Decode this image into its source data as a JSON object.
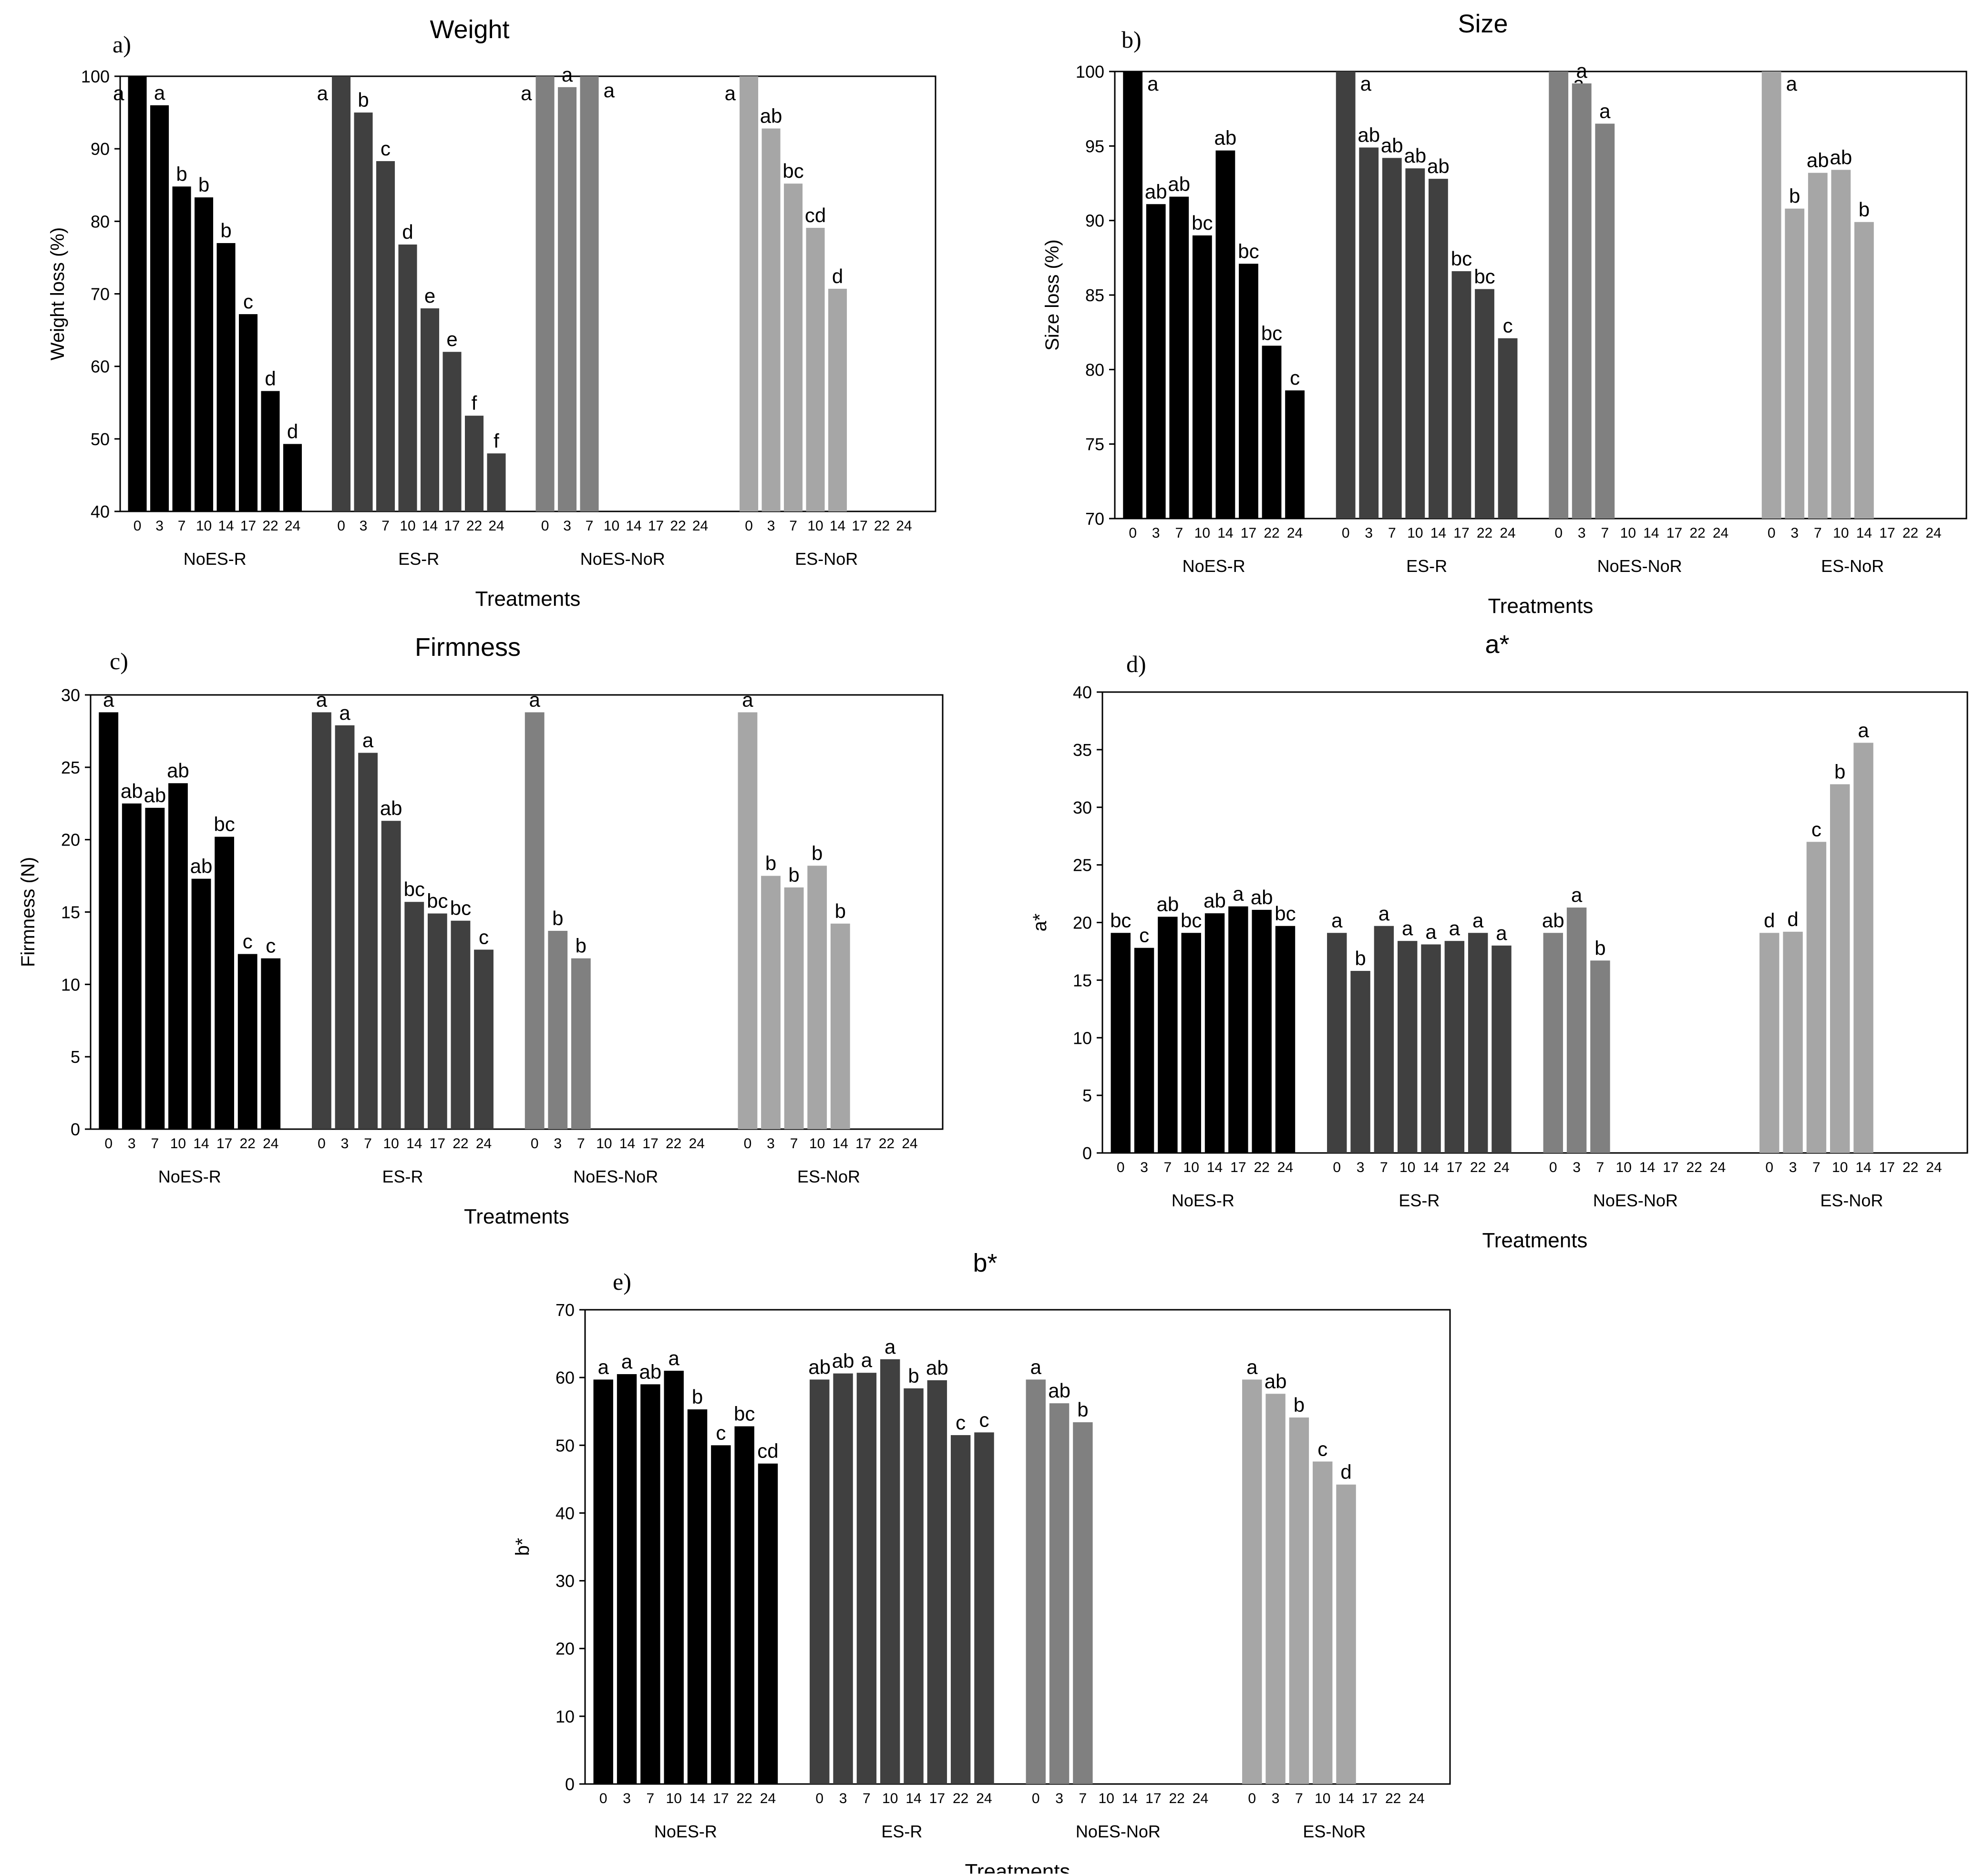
{
  "figure": {
    "groups": [
      "NoES-R",
      "ES-R",
      "NoES-NoR",
      "ES-NoR"
    ],
    "days": [
      "0",
      "3",
      "7",
      "10",
      "14",
      "17",
      "22",
      "24"
    ],
    "group_colors": [
      "#000000",
      "#404040",
      "#808080",
      "#a6a6a6"
    ]
  },
  "chart_data": [
    {
      "type": "bar",
      "panel": "a)",
      "title": "Weight",
      "xlabel": "Treatments",
      "ylabel": "Weight  loss (%)",
      "ylim": [
        40,
        100
      ],
      "yticks": [
        40,
        50,
        60,
        70,
        80,
        90,
        100
      ],
      "series": [
        {
          "name": "NoES-R",
          "values": [
            100,
            96,
            84.8,
            83.3,
            77,
            67.2,
            56.6,
            49.3
          ],
          "letters": [
            "a",
            "a",
            "b",
            "b",
            "b",
            "c",
            "d",
            "d"
          ]
        },
        {
          "name": "ES-R",
          "values": [
            100,
            95,
            88.3,
            76.8,
            68,
            62,
            53.2,
            48
          ],
          "letters": [
            "a",
            "b",
            "c",
            "d",
            "e",
            "e",
            "f",
            "f"
          ]
        },
        {
          "name": "NoES-NoR",
          "values": [
            100,
            98.5,
            100,
            null,
            null,
            null,
            null,
            null
          ],
          "letters": [
            "a",
            "a",
            "a",
            "",
            "",
            "",
            "",
            ""
          ]
        },
        {
          "name": "ES-NoR",
          "values": [
            100,
            92.8,
            85.2,
            79.1,
            70.7,
            null,
            null,
            null
          ],
          "letters": [
            "a",
            "ab",
            "bc",
            "cd",
            "d",
            "",
            "",
            ""
          ]
        }
      ]
    },
    {
      "type": "bar",
      "panel": "b)",
      "title": "Size",
      "xlabel": "Treatments",
      "ylabel": "Size loss (%)",
      "ylim": [
        70,
        100
      ],
      "yticks": [
        70,
        75,
        80,
        85,
        90,
        95,
        100
      ],
      "series": [
        {
          "name": "NoES-R",
          "values": [
            100,
            91.1,
            91.6,
            89,
            94.7,
            87.1,
            81.6,
            78.6
          ],
          "letters": [
            "a",
            "ab",
            "ab",
            "bc",
            "ab",
            "bc",
            "bc",
            "c"
          ]
        },
        {
          "name": "ES-R",
          "values": [
            100,
            94.9,
            94.2,
            93.5,
            92.8,
            86.6,
            85.4,
            82.1
          ],
          "letters": [
            "a",
            "ab",
            "ab",
            "ab",
            "ab",
            "bc",
            "bc",
            "c"
          ]
        },
        {
          "name": "NoES-NoR",
          "values": [
            100,
            99.2,
            96.5,
            null,
            null,
            null,
            null,
            null
          ],
          "letters": [
            "a",
            "a",
            "a",
            "",
            "",
            "",
            "",
            ""
          ]
        },
        {
          "name": "ES-NoR",
          "values": [
            100,
            90.8,
            93.2,
            93.4,
            89.9,
            null,
            null,
            null
          ],
          "letters": [
            "a",
            "b",
            "ab",
            "ab",
            "b",
            "",
            "",
            ""
          ]
        }
      ]
    },
    {
      "type": "bar",
      "panel": "c)",
      "title": "Firmness",
      "xlabel": "Treatments",
      "ylabel": "Firmness (N)",
      "ylim": [
        0,
        30
      ],
      "yticks": [
        0,
        5,
        10,
        15,
        20,
        25,
        30
      ],
      "series": [
        {
          "name": "NoES-R",
          "values": [
            28.8,
            22.5,
            22.2,
            23.9,
            17.3,
            20.2,
            12.1,
            11.8
          ],
          "letters": [
            "a",
            "ab",
            "ab",
            "ab",
            "ab",
            "bc",
            "c",
            "c"
          ]
        },
        {
          "name": "ES-R",
          "values": [
            28.8,
            27.9,
            26,
            21.3,
            15.7,
            14.9,
            14.4,
            12.4
          ],
          "letters": [
            "a",
            "a",
            "a",
            "ab",
            "bc",
            "bc",
            "bc",
            "c"
          ]
        },
        {
          "name": "NoES-NoR",
          "values": [
            28.8,
            13.7,
            11.8,
            null,
            null,
            null,
            null,
            null
          ],
          "letters": [
            "a",
            "b",
            "b",
            "",
            "",
            "",
            "",
            ""
          ]
        },
        {
          "name": "ES-NoR",
          "values": [
            28.8,
            17.5,
            16.7,
            18.2,
            14.2,
            null,
            null,
            null
          ],
          "letters": [
            "a",
            "b",
            "b",
            "b",
            "b",
            "",
            "",
            ""
          ]
        }
      ]
    },
    {
      "type": "bar",
      "panel": "d)",
      "title": "a*",
      "xlabel": "Treatments",
      "ylabel": "a*",
      "ylim": [
        0,
        40
      ],
      "yticks": [
        0,
        5,
        10,
        15,
        20,
        25,
        30,
        35,
        40
      ],
      "series": [
        {
          "name": "NoES-R",
          "values": [
            19.1,
            17.8,
            20.5,
            19.1,
            20.8,
            21.4,
            21.1,
            19.7
          ],
          "letters": [
            "bc",
            "c",
            "ab",
            "bc",
            "ab",
            "a",
            "ab",
            "bc"
          ]
        },
        {
          "name": "ES-R",
          "values": [
            19.1,
            15.8,
            19.7,
            18.4,
            18.1,
            18.4,
            19.1,
            18
          ],
          "letters": [
            "a",
            "b",
            "a",
            "a",
            "a",
            "a",
            "a",
            "a"
          ]
        },
        {
          "name": "NoES-NoR",
          "values": [
            19.1,
            21.3,
            16.7,
            null,
            null,
            null,
            null,
            null
          ],
          "letters": [
            "ab",
            "a",
            "b",
            "",
            "",
            "",
            "",
            ""
          ]
        },
        {
          "name": "ES-NoR",
          "values": [
            19.1,
            19.2,
            27,
            32,
            35.6,
            null,
            null,
            null
          ],
          "letters": [
            "d",
            "d",
            "c",
            "b",
            "a",
            "",
            "",
            ""
          ]
        }
      ]
    },
    {
      "type": "bar",
      "panel": "e)",
      "title": "b*",
      "xlabel": "Treatments",
      "ylabel": "b*",
      "ylim": [
        0,
        70
      ],
      "yticks": [
        0,
        10,
        20,
        30,
        40,
        50,
        60,
        70
      ],
      "series": [
        {
          "name": "NoES-R",
          "values": [
            59.7,
            60.5,
            59,
            61,
            55.3,
            50,
            52.8,
            47.3
          ],
          "letters": [
            "a",
            "a",
            "ab",
            "a",
            "b",
            "c",
            "bc",
            "cd"
          ]
        },
        {
          "name": "ES-R",
          "values": [
            59.7,
            60.6,
            60.7,
            62.7,
            58.4,
            59.6,
            51.5,
            51.9
          ],
          "letters": [
            "ab",
            "ab",
            "a",
            "a",
            "b",
            "ab",
            "c",
            "c"
          ]
        },
        {
          "name": "NoES-NoR",
          "values": [
            59.7,
            56.2,
            53.4,
            null,
            null,
            null,
            null,
            null
          ],
          "letters": [
            "a",
            "ab",
            "b",
            "",
            "",
            "",
            "",
            ""
          ]
        },
        {
          "name": "ES-NoR",
          "values": [
            59.7,
            57.6,
            54.1,
            47.6,
            44.2,
            null,
            null,
            null
          ],
          "letters": [
            "a",
            "ab",
            "b",
            "c",
            "d",
            "",
            "",
            ""
          ]
        }
      ]
    }
  ]
}
